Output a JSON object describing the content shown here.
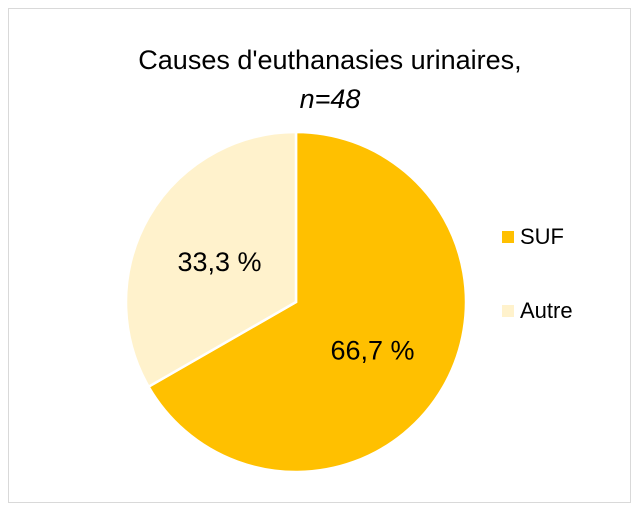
{
  "chart_data": {
    "type": "pie",
    "title": "Causes d'euthanasies urinaires,",
    "subtitle": "n=48",
    "categories": [
      "SUF",
      "Autre"
    ],
    "values": [
      66.7,
      33.3
    ],
    "value_labels": [
      "66,7 %",
      "33,3 %"
    ],
    "colors": [
      "#FFC000",
      "#FFF2CC"
    ],
    "legend": "right"
  }
}
